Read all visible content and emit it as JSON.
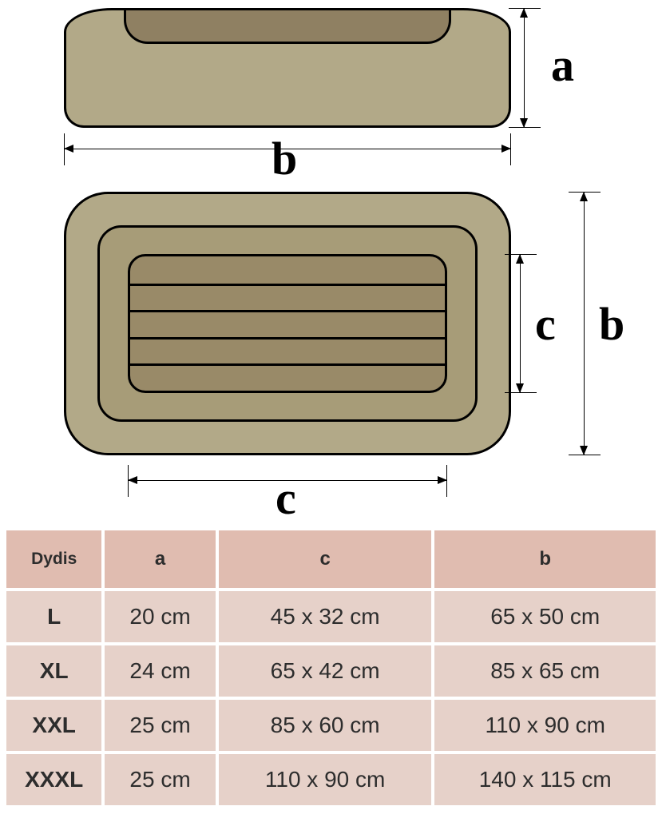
{
  "diagram": {
    "side_view": {
      "outer_fill": "#b2a988",
      "inner_fill": "#8f8062",
      "outline": "#000000"
    },
    "top_view": {
      "outer_fill": "#b2a988",
      "rim_fill": "#a79c78",
      "pad_fill": "#998a68",
      "slat_count": 4,
      "outline": "#000000"
    },
    "labels": {
      "a": "a",
      "b": "b",
      "c": "c"
    },
    "label_font_size_pt": 44,
    "label_font_weight": "bold",
    "label_font_family": "Times New Roman"
  },
  "table": {
    "header_bg": "#e0bcb0",
    "cell_bg": "#e6d1c9",
    "text_color": "#2d2d2d",
    "header_font_size_pt": 18,
    "cell_font_size_pt": 21,
    "columns": [
      "Dydis",
      "a",
      "c",
      "b"
    ],
    "rows": [
      {
        "size": "L",
        "a": "20 cm",
        "c": "45 x 32 cm",
        "b": "65 x 50 cm"
      },
      {
        "size": "XL",
        "a": "24 cm",
        "c": "65 x 42 cm",
        "b": "85 x 65 cm"
      },
      {
        "size": "XXL",
        "a": "25 cm",
        "c": "85 x 60 cm",
        "b": "110 x 90 cm"
      },
      {
        "size": "XXXL",
        "a": "25 cm",
        "c": "110 x 90 cm",
        "b": "140 x 115 cm"
      }
    ]
  }
}
